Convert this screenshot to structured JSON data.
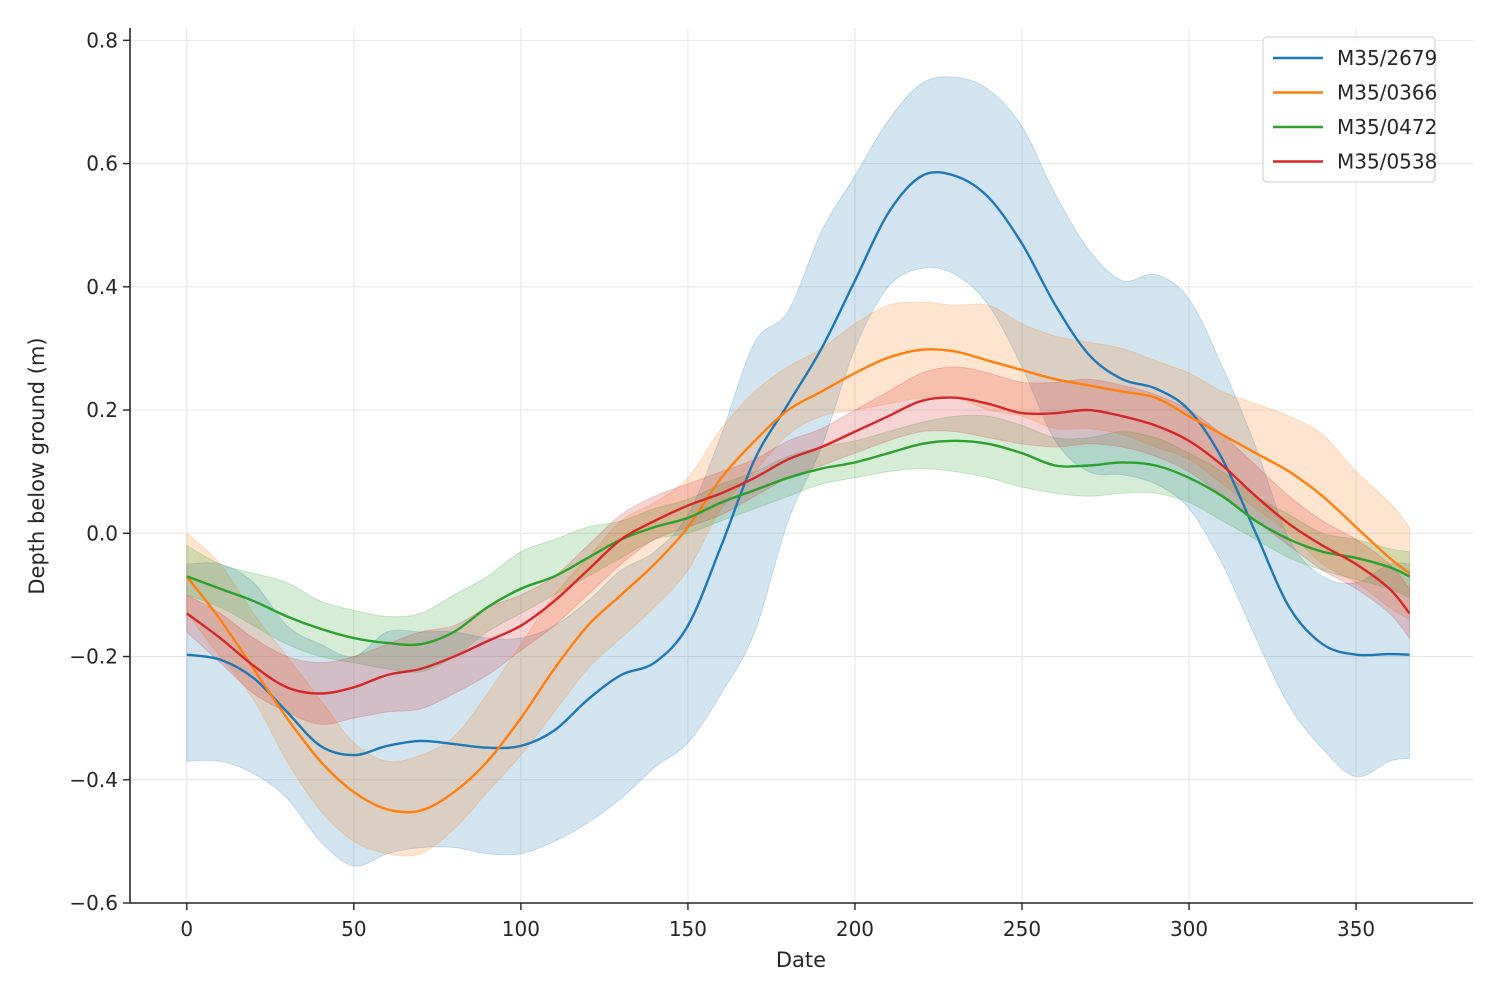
{
  "chart_data": {
    "type": "line",
    "title": "",
    "xlabel": "Date",
    "ylabel": "Depth below ground (m)",
    "xlim": [
      -17,
      385
    ],
    "ylim": [
      -0.6,
      0.82
    ],
    "xticks": [
      0,
      50,
      100,
      150,
      200,
      250,
      300,
      350
    ],
    "xtick_labels": [
      "0",
      "50",
      "100",
      "150",
      "200",
      "250",
      "300",
      "350"
    ],
    "yticks": [
      -0.6,
      -0.4,
      -0.2,
      0.0,
      0.2,
      0.4,
      0.6,
      0.8
    ],
    "ytick_labels": [
      "−0.6",
      "−0.4",
      "−0.2",
      "0.0",
      "0.2",
      "0.4",
      "0.6",
      "0.8"
    ],
    "grid": true,
    "legend_position": "top-right",
    "x": [
      0,
      10,
      20,
      30,
      40,
      50,
      60,
      70,
      80,
      90,
      100,
      110,
      120,
      130,
      140,
      150,
      160,
      170,
      180,
      190,
      200,
      210,
      220,
      230,
      240,
      250,
      260,
      270,
      280,
      290,
      300,
      310,
      320,
      330,
      340,
      350,
      360,
      366
    ],
    "series": [
      {
        "name": "M35/2679",
        "color": "#1f77b4",
        "mean": [
          -0.197,
          -0.205,
          -0.235,
          -0.29,
          -0.345,
          -0.36,
          -0.345,
          -0.337,
          -0.342,
          -0.348,
          -0.345,
          -0.32,
          -0.27,
          -0.23,
          -0.21,
          -0.15,
          -0.02,
          0.12,
          0.21,
          0.3,
          0.41,
          0.52,
          0.58,
          0.58,
          0.545,
          0.47,
          0.37,
          0.29,
          0.25,
          0.235,
          0.2,
          0.12,
          0.0,
          -0.12,
          -0.18,
          -0.197,
          -0.196,
          -0.197
        ],
        "lower": [
          -0.37,
          -0.37,
          -0.39,
          -0.43,
          -0.5,
          -0.54,
          -0.52,
          -0.51,
          -0.51,
          -0.52,
          -0.52,
          -0.5,
          -0.47,
          -0.43,
          -0.38,
          -0.34,
          -0.26,
          -0.16,
          0.02,
          0.14,
          0.3,
          0.4,
          0.43,
          0.42,
          0.37,
          0.27,
          0.15,
          0.1,
          0.095,
          0.08,
          0.04,
          -0.05,
          -0.17,
          -0.28,
          -0.35,
          -0.395,
          -0.37,
          -0.365
        ],
        "upper": [
          -0.05,
          -0.05,
          -0.08,
          -0.15,
          -0.18,
          -0.2,
          -0.16,
          -0.16,
          -0.16,
          -0.17,
          -0.17,
          -0.15,
          -0.11,
          -0.06,
          -0.03,
          0.03,
          0.16,
          0.31,
          0.36,
          0.49,
          0.58,
          0.67,
          0.73,
          0.74,
          0.72,
          0.66,
          0.55,
          0.46,
          0.41,
          0.42,
          0.38,
          0.27,
          0.14,
          -0.01,
          -0.07,
          -0.08,
          -0.05,
          -0.05
        ]
      },
      {
        "name": "M35/0366",
        "color": "#ff7f0e",
        "mean": [
          -0.07,
          -0.14,
          -0.22,
          -0.3,
          -0.37,
          -0.42,
          -0.448,
          -0.45,
          -0.42,
          -0.37,
          -0.3,
          -0.22,
          -0.15,
          -0.1,
          -0.05,
          0.01,
          0.09,
          0.15,
          0.2,
          0.23,
          0.26,
          0.285,
          0.298,
          0.295,
          0.28,
          0.265,
          0.25,
          0.24,
          0.23,
          0.22,
          0.19,
          0.16,
          0.13,
          0.1,
          0.06,
          0.01,
          -0.04,
          -0.065
        ],
        "lower": [
          -0.13,
          -0.2,
          -0.27,
          -0.37,
          -0.45,
          -0.5,
          -0.52,
          -0.52,
          -0.48,
          -0.42,
          -0.36,
          -0.29,
          -0.22,
          -0.17,
          -0.12,
          -0.06,
          0.04,
          0.1,
          0.16,
          0.19,
          0.2,
          0.21,
          0.22,
          0.22,
          0.2,
          0.19,
          0.17,
          0.17,
          0.16,
          0.14,
          0.12,
          0.08,
          0.04,
          0.0,
          -0.05,
          -0.08,
          -0.12,
          -0.14
        ],
        "upper": [
          0.0,
          -0.05,
          -0.13,
          -0.2,
          -0.27,
          -0.34,
          -0.37,
          -0.36,
          -0.33,
          -0.26,
          -0.18,
          -0.1,
          -0.04,
          0.02,
          0.05,
          0.09,
          0.17,
          0.23,
          0.27,
          0.3,
          0.34,
          0.37,
          0.375,
          0.37,
          0.37,
          0.34,
          0.32,
          0.31,
          0.3,
          0.28,
          0.26,
          0.23,
          0.21,
          0.19,
          0.16,
          0.1,
          0.05,
          0.01
        ]
      },
      {
        "name": "M35/0472",
        "color": "#2ca02c",
        "mean": [
          -0.07,
          -0.09,
          -0.11,
          -0.135,
          -0.155,
          -0.17,
          -0.178,
          -0.18,
          -0.16,
          -0.12,
          -0.09,
          -0.07,
          -0.04,
          -0.01,
          0.01,
          0.025,
          0.05,
          0.07,
          0.09,
          0.105,
          0.115,
          0.13,
          0.145,
          0.15,
          0.145,
          0.13,
          0.11,
          0.11,
          0.115,
          0.11,
          0.09,
          0.06,
          0.02,
          -0.01,
          -0.03,
          -0.04,
          -0.055,
          -0.07
        ],
        "lower": [
          -0.1,
          -0.12,
          -0.15,
          -0.18,
          -0.2,
          -0.21,
          -0.22,
          -0.225,
          -0.2,
          -0.16,
          -0.13,
          -0.1,
          -0.07,
          -0.04,
          -0.01,
          0.0,
          0.02,
          0.04,
          0.06,
          0.08,
          0.09,
          0.1,
          0.105,
          0.1,
          0.09,
          0.075,
          0.065,
          0.06,
          0.065,
          0.065,
          0.05,
          0.02,
          -0.01,
          -0.04,
          -0.06,
          -0.075,
          -0.09,
          -0.105
        ],
        "upper": [
          -0.02,
          -0.05,
          -0.065,
          -0.08,
          -0.11,
          -0.125,
          -0.135,
          -0.13,
          -0.1,
          -0.07,
          -0.03,
          -0.01,
          0.01,
          0.02,
          0.04,
          0.055,
          0.08,
          0.1,
          0.125,
          0.14,
          0.15,
          0.165,
          0.18,
          0.19,
          0.19,
          0.175,
          0.155,
          0.155,
          0.165,
          0.155,
          0.13,
          0.1,
          0.06,
          0.03,
          0.0,
          -0.01,
          -0.025,
          -0.03
        ]
      },
      {
        "name": "M35/0538",
        "color": "#d62728",
        "mean": [
          -0.13,
          -0.17,
          -0.215,
          -0.25,
          -0.26,
          -0.25,
          -0.23,
          -0.22,
          -0.2,
          -0.175,
          -0.15,
          -0.11,
          -0.06,
          -0.01,
          0.02,
          0.045,
          0.065,
          0.09,
          0.12,
          0.14,
          0.165,
          0.19,
          0.215,
          0.22,
          0.21,
          0.195,
          0.195,
          0.2,
          0.19,
          0.175,
          0.15,
          0.11,
          0.06,
          0.015,
          -0.02,
          -0.05,
          -0.09,
          -0.13
        ],
        "lower": [
          -0.16,
          -0.21,
          -0.26,
          -0.29,
          -0.31,
          -0.3,
          -0.29,
          -0.285,
          -0.26,
          -0.23,
          -0.19,
          -0.15,
          -0.1,
          -0.05,
          -0.01,
          0.01,
          0.03,
          0.06,
          0.09,
          0.11,
          0.13,
          0.15,
          0.165,
          0.165,
          0.155,
          0.145,
          0.14,
          0.145,
          0.14,
          0.125,
          0.1,
          0.06,
          0.02,
          -0.02,
          -0.06,
          -0.09,
          -0.13,
          -0.17
        ],
        "upper": [
          -0.1,
          -0.13,
          -0.17,
          -0.2,
          -0.21,
          -0.2,
          -0.18,
          -0.16,
          -0.15,
          -0.12,
          -0.1,
          -0.07,
          -0.02,
          0.03,
          0.06,
          0.08,
          0.1,
          0.12,
          0.15,
          0.17,
          0.2,
          0.23,
          0.26,
          0.27,
          0.26,
          0.245,
          0.245,
          0.25,
          0.24,
          0.225,
          0.2,
          0.16,
          0.11,
          0.06,
          0.02,
          -0.01,
          -0.05,
          -0.09
        ]
      }
    ]
  }
}
